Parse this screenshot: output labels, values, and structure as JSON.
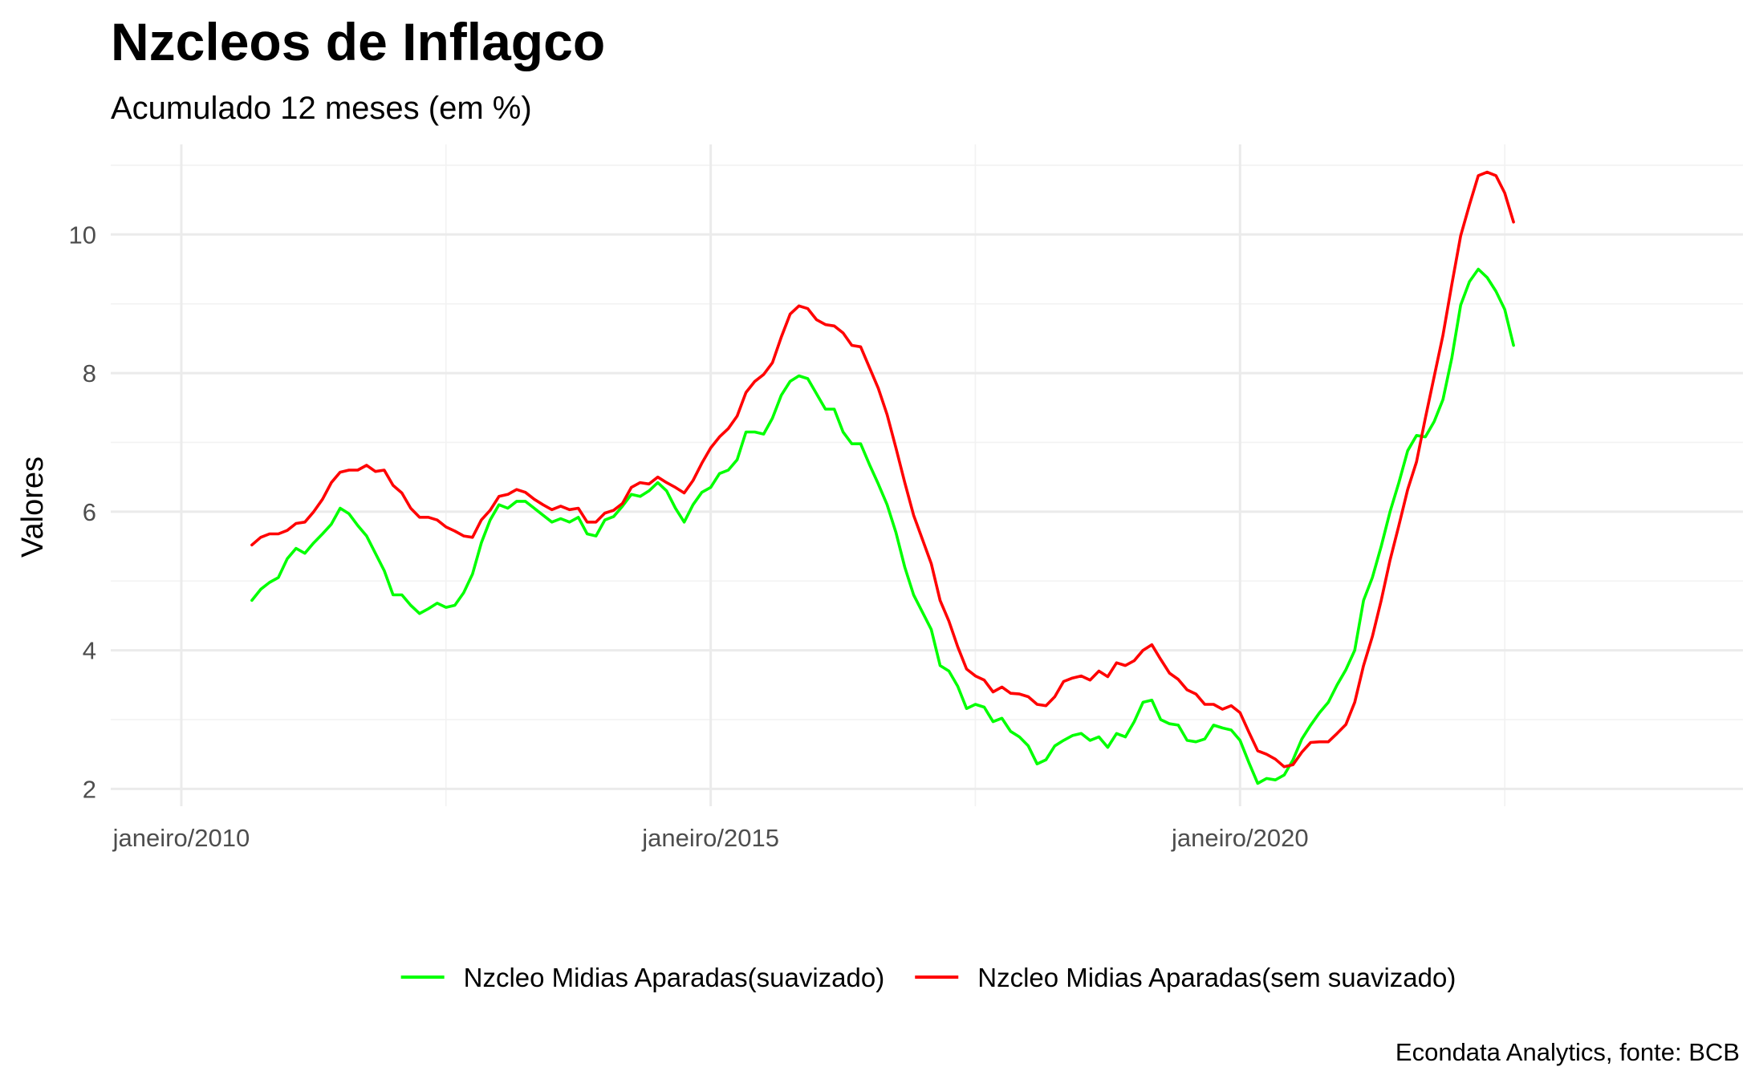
{
  "chart_data": {
    "type": "line",
    "title": "Nzcleos de Inflagco",
    "subtitle": "Acumulado 12 meses (em %)",
    "xlabel": "",
    "ylabel": "Valores",
    "caption": "Econdata Analytics, fonte: BCB",
    "x_ticks": [
      {
        "date": "2010-01",
        "label": "janeiro/2010"
      },
      {
        "date": "2015-01",
        "label": "janeiro/2015"
      },
      {
        "date": "2020-01",
        "label": "janeiro/2020"
      }
    ],
    "y_ticks": [
      2,
      4,
      6,
      8,
      10
    ],
    "ylim": [
      1.75,
      11.3
    ],
    "xlim": [
      "2009-05",
      "2024-10"
    ],
    "grid": true,
    "legend_position": "bottom",
    "series": [
      {
        "name": "Nzcleo Midias Aparadas(suavizado)",
        "color": "#00ff00",
        "points": [
          [
            "2010-09",
            4.72
          ],
          [
            "2010-10",
            4.88
          ],
          [
            "2010-11",
            4.98
          ],
          [
            "2010-12",
            5.05
          ],
          [
            "2011-01",
            5.32
          ],
          [
            "2011-02",
            5.47
          ],
          [
            "2011-03",
            5.4
          ],
          [
            "2011-04",
            5.55
          ],
          [
            "2011-05",
            5.68
          ],
          [
            "2011-06",
            5.82
          ],
          [
            "2011-07",
            6.05
          ],
          [
            "2011-08",
            5.97
          ],
          [
            "2011-09",
            5.8
          ],
          [
            "2011-10",
            5.65
          ],
          [
            "2011-11",
            5.4
          ],
          [
            "2011-12",
            5.15
          ],
          [
            "2012-01",
            4.8
          ],
          [
            "2012-02",
            4.8
          ],
          [
            "2012-03",
            4.65
          ],
          [
            "2012-04",
            4.53
          ],
          [
            "2012-05",
            4.6
          ],
          [
            "2012-06",
            4.68
          ],
          [
            "2012-07",
            4.62
          ],
          [
            "2012-08",
            4.65
          ],
          [
            "2012-09",
            4.83
          ],
          [
            "2012-10",
            5.1
          ],
          [
            "2012-11",
            5.55
          ],
          [
            "2012-12",
            5.88
          ],
          [
            "2013-01",
            6.1
          ],
          [
            "2013-02",
            6.05
          ],
          [
            "2013-03",
            6.15
          ],
          [
            "2013-04",
            6.15
          ],
          [
            "2013-05",
            6.05
          ],
          [
            "2013-06",
            5.95
          ],
          [
            "2013-07",
            5.85
          ],
          [
            "2013-08",
            5.9
          ],
          [
            "2013-09",
            5.85
          ],
          [
            "2013-10",
            5.92
          ],
          [
            "2013-11",
            5.68
          ],
          [
            "2013-12",
            5.65
          ],
          [
            "2014-01",
            5.88
          ],
          [
            "2014-02",
            5.93
          ],
          [
            "2014-03",
            6.08
          ],
          [
            "2014-04",
            6.25
          ],
          [
            "2014-05",
            6.22
          ],
          [
            "2014-06",
            6.3
          ],
          [
            "2014-07",
            6.42
          ],
          [
            "2014-08",
            6.3
          ],
          [
            "2014-09",
            6.05
          ],
          [
            "2014-10",
            5.85
          ],
          [
            "2014-11",
            6.1
          ],
          [
            "2014-12",
            6.28
          ],
          [
            "2015-01",
            6.35
          ],
          [
            "2015-02",
            6.55
          ],
          [
            "2015-03",
            6.6
          ],
          [
            "2015-04",
            6.75
          ],
          [
            "2015-05",
            7.15
          ],
          [
            "2015-06",
            7.15
          ],
          [
            "2015-07",
            7.12
          ],
          [
            "2015-08",
            7.35
          ],
          [
            "2015-09",
            7.68
          ],
          [
            "2015-10",
            7.88
          ],
          [
            "2015-11",
            7.96
          ],
          [
            "2015-12",
            7.92
          ],
          [
            "2016-01",
            7.7
          ],
          [
            "2016-02",
            7.48
          ],
          [
            "2016-03",
            7.48
          ],
          [
            "2016-04",
            7.15
          ],
          [
            "2016-05",
            6.98
          ],
          [
            "2016-06",
            6.98
          ],
          [
            "2016-07",
            6.68
          ],
          [
            "2016-08",
            6.4
          ],
          [
            "2016-09",
            6.1
          ],
          [
            "2016-10",
            5.7
          ],
          [
            "2016-11",
            5.2
          ],
          [
            "2016-12",
            4.8
          ],
          [
            "2017-01",
            4.55
          ],
          [
            "2017-02",
            4.3
          ],
          [
            "2017-03",
            3.78
          ],
          [
            "2017-04",
            3.7
          ],
          [
            "2017-05",
            3.48
          ],
          [
            "2017-06",
            3.16
          ],
          [
            "2017-07",
            3.22
          ],
          [
            "2017-08",
            3.18
          ],
          [
            "2017-09",
            2.97
          ],
          [
            "2017-10",
            3.02
          ],
          [
            "2017-11",
            2.83
          ],
          [
            "2017-12",
            2.75
          ],
          [
            "2018-01",
            2.62
          ],
          [
            "2018-02",
            2.36
          ],
          [
            "2018-03",
            2.42
          ],
          [
            "2018-04",
            2.62
          ],
          [
            "2018-05",
            2.7
          ],
          [
            "2018-06",
            2.77
          ],
          [
            "2018-07",
            2.8
          ],
          [
            "2018-08",
            2.7
          ],
          [
            "2018-09",
            2.75
          ],
          [
            "2018-10",
            2.6
          ],
          [
            "2018-11",
            2.8
          ],
          [
            "2018-12",
            2.75
          ],
          [
            "2019-01",
            2.97
          ],
          [
            "2019-02",
            3.25
          ],
          [
            "2019-03",
            3.28
          ],
          [
            "2019-04",
            3.0
          ],
          [
            "2019-05",
            2.94
          ],
          [
            "2019-06",
            2.92
          ],
          [
            "2019-07",
            2.7
          ],
          [
            "2019-08",
            2.68
          ],
          [
            "2019-09",
            2.72
          ],
          [
            "2019-10",
            2.92
          ],
          [
            "2019-11",
            2.88
          ],
          [
            "2019-12",
            2.85
          ],
          [
            "2020-01",
            2.7
          ],
          [
            "2020-02",
            2.38
          ],
          [
            "2020-03",
            2.08
          ],
          [
            "2020-04",
            2.15
          ],
          [
            "2020-05",
            2.13
          ],
          [
            "2020-06",
            2.2
          ],
          [
            "2020-07",
            2.42
          ],
          [
            "2020-08",
            2.72
          ],
          [
            "2020-09",
            2.92
          ],
          [
            "2020-10",
            3.1
          ],
          [
            "2020-11",
            3.25
          ],
          [
            "2020-12",
            3.5
          ],
          [
            "2021-01",
            3.72
          ],
          [
            "2021-02",
            4.0
          ],
          [
            "2021-03",
            4.72
          ],
          [
            "2021-04",
            5.05
          ],
          [
            "2021-05",
            5.5
          ],
          [
            "2021-06",
            6.0
          ],
          [
            "2021-07",
            6.42
          ],
          [
            "2021-08",
            6.88
          ],
          [
            "2021-09",
            7.1
          ],
          [
            "2021-10",
            7.08
          ],
          [
            "2021-11",
            7.3
          ],
          [
            "2021-12",
            7.62
          ],
          [
            "2022-01",
            8.22
          ],
          [
            "2022-02",
            8.98
          ],
          [
            "2022-03",
            9.32
          ],
          [
            "2022-04",
            9.5
          ],
          [
            "2022-05",
            9.38
          ],
          [
            "2022-06",
            9.18
          ],
          [
            "2022-07",
            8.92
          ],
          [
            "2022-08",
            8.4
          ]
        ]
      },
      {
        "name": "Nzcleo Midias Aparadas(sem suavizado)",
        "color": "#ff0000",
        "points": [
          [
            "2010-09",
            5.52
          ],
          [
            "2010-10",
            5.63
          ],
          [
            "2010-11",
            5.68
          ],
          [
            "2010-12",
            5.68
          ],
          [
            "2011-01",
            5.73
          ],
          [
            "2011-02",
            5.83
          ],
          [
            "2011-03",
            5.85
          ],
          [
            "2011-04",
            6.0
          ],
          [
            "2011-05",
            6.18
          ],
          [
            "2011-06",
            6.42
          ],
          [
            "2011-07",
            6.57
          ],
          [
            "2011-08",
            6.6
          ],
          [
            "2011-09",
            6.6
          ],
          [
            "2011-10",
            6.67
          ],
          [
            "2011-11",
            6.58
          ],
          [
            "2011-12",
            6.6
          ],
          [
            "2012-01",
            6.38
          ],
          [
            "2012-02",
            6.27
          ],
          [
            "2012-03",
            6.05
          ],
          [
            "2012-04",
            5.92
          ],
          [
            "2012-05",
            5.92
          ],
          [
            "2012-06",
            5.88
          ],
          [
            "2012-07",
            5.78
          ],
          [
            "2012-08",
            5.72
          ],
          [
            "2012-09",
            5.65
          ],
          [
            "2012-10",
            5.63
          ],
          [
            "2012-11",
            5.88
          ],
          [
            "2012-12",
            6.02
          ],
          [
            "2013-01",
            6.22
          ],
          [
            "2013-02",
            6.25
          ],
          [
            "2013-03",
            6.32
          ],
          [
            "2013-04",
            6.28
          ],
          [
            "2013-05",
            6.18
          ],
          [
            "2013-06",
            6.1
          ],
          [
            "2013-07",
            6.03
          ],
          [
            "2013-08",
            6.08
          ],
          [
            "2013-09",
            6.03
          ],
          [
            "2013-10",
            6.05
          ],
          [
            "2013-11",
            5.85
          ],
          [
            "2013-12",
            5.85
          ],
          [
            "2014-01",
            5.98
          ],
          [
            "2014-02",
            6.02
          ],
          [
            "2014-03",
            6.12
          ],
          [
            "2014-04",
            6.35
          ],
          [
            "2014-05",
            6.42
          ],
          [
            "2014-06",
            6.4
          ],
          [
            "2014-07",
            6.5
          ],
          [
            "2014-08",
            6.42
          ],
          [
            "2014-09",
            6.35
          ],
          [
            "2014-10",
            6.27
          ],
          [
            "2014-11",
            6.45
          ],
          [
            "2014-12",
            6.7
          ],
          [
            "2015-01",
            6.92
          ],
          [
            "2015-02",
            7.08
          ],
          [
            "2015-03",
            7.2
          ],
          [
            "2015-04",
            7.38
          ],
          [
            "2015-05",
            7.72
          ],
          [
            "2015-06",
            7.88
          ],
          [
            "2015-07",
            7.98
          ],
          [
            "2015-08",
            8.15
          ],
          [
            "2015-09",
            8.52
          ],
          [
            "2015-10",
            8.85
          ],
          [
            "2015-11",
            8.97
          ],
          [
            "2015-12",
            8.93
          ],
          [
            "2016-01",
            8.77
          ],
          [
            "2016-02",
            8.7
          ],
          [
            "2016-03",
            8.68
          ],
          [
            "2016-04",
            8.58
          ],
          [
            "2016-05",
            8.4
          ],
          [
            "2016-06",
            8.38
          ],
          [
            "2016-07",
            8.08
          ],
          [
            "2016-08",
            7.78
          ],
          [
            "2016-09",
            7.4
          ],
          [
            "2016-10",
            6.92
          ],
          [
            "2016-11",
            6.42
          ],
          [
            "2016-12",
            5.95
          ],
          [
            "2017-01",
            5.6
          ],
          [
            "2017-02",
            5.25
          ],
          [
            "2017-03",
            4.72
          ],
          [
            "2017-04",
            4.42
          ],
          [
            "2017-05",
            4.05
          ],
          [
            "2017-06",
            3.73
          ],
          [
            "2017-07",
            3.63
          ],
          [
            "2017-08",
            3.57
          ],
          [
            "2017-09",
            3.4
          ],
          [
            "2017-10",
            3.47
          ],
          [
            "2017-11",
            3.38
          ],
          [
            "2017-12",
            3.37
          ],
          [
            "2018-01",
            3.33
          ],
          [
            "2018-02",
            3.22
          ],
          [
            "2018-03",
            3.2
          ],
          [
            "2018-04",
            3.33
          ],
          [
            "2018-05",
            3.55
          ],
          [
            "2018-06",
            3.6
          ],
          [
            "2018-07",
            3.63
          ],
          [
            "2018-08",
            3.57
          ],
          [
            "2018-09",
            3.7
          ],
          [
            "2018-10",
            3.62
          ],
          [
            "2018-11",
            3.82
          ],
          [
            "2018-12",
            3.78
          ],
          [
            "2019-01",
            3.85
          ],
          [
            "2019-02",
            4.0
          ],
          [
            "2019-03",
            4.08
          ],
          [
            "2019-04",
            3.87
          ],
          [
            "2019-05",
            3.67
          ],
          [
            "2019-06",
            3.58
          ],
          [
            "2019-07",
            3.43
          ],
          [
            "2019-08",
            3.37
          ],
          [
            "2019-09",
            3.22
          ],
          [
            "2019-10",
            3.22
          ],
          [
            "2019-11",
            3.15
          ],
          [
            "2019-12",
            3.2
          ],
          [
            "2020-01",
            3.1
          ],
          [
            "2020-02",
            2.82
          ],
          [
            "2020-03",
            2.55
          ],
          [
            "2020-04",
            2.5
          ],
          [
            "2020-05",
            2.43
          ],
          [
            "2020-06",
            2.32
          ],
          [
            "2020-07",
            2.35
          ],
          [
            "2020-08",
            2.53
          ],
          [
            "2020-09",
            2.67
          ],
          [
            "2020-10",
            2.68
          ],
          [
            "2020-11",
            2.68
          ],
          [
            "2020-12",
            2.8
          ],
          [
            "2021-01",
            2.93
          ],
          [
            "2021-02",
            3.25
          ],
          [
            "2021-03",
            3.78
          ],
          [
            "2021-04",
            4.2
          ],
          [
            "2021-05",
            4.72
          ],
          [
            "2021-06",
            5.3
          ],
          [
            "2021-07",
            5.8
          ],
          [
            "2021-08",
            6.32
          ],
          [
            "2021-09",
            6.72
          ],
          [
            "2021-10",
            7.35
          ],
          [
            "2021-11",
            7.95
          ],
          [
            "2021-12",
            8.55
          ],
          [
            "2022-01",
            9.28
          ],
          [
            "2022-02",
            9.98
          ],
          [
            "2022-03",
            10.43
          ],
          [
            "2022-04",
            10.85
          ],
          [
            "2022-05",
            10.9
          ],
          [
            "2022-06",
            10.85
          ],
          [
            "2022-07",
            10.6
          ],
          [
            "2022-08",
            10.18
          ]
        ]
      }
    ]
  }
}
